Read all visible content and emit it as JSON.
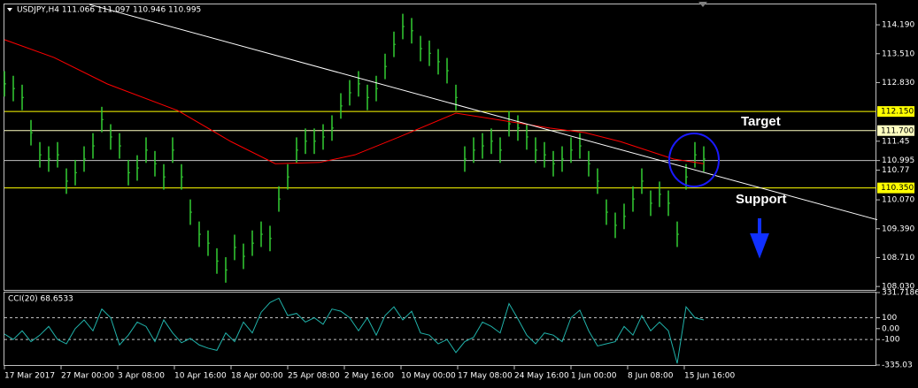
{
  "chart_data": [
    {
      "type": "ohlc",
      "title": "USDJPY,H4  111.066 111.097 110.946 110.995",
      "color": "#32cd32",
      "x": [
        0,
        5,
        10,
        15,
        20,
        25,
        30,
        35,
        40,
        45,
        50,
        55,
        60,
        65,
        70,
        75,
        80,
        85,
        90,
        95,
        100,
        105,
        110,
        115,
        120,
        125,
        130,
        135,
        140,
        145,
        150,
        155,
        160,
        165,
        170,
        175,
        180,
        185,
        190,
        195,
        200,
        205,
        210,
        215,
        220,
        225,
        230,
        235,
        240,
        245,
        250,
        255,
        260,
        265,
        270,
        275,
        280,
        285,
        290,
        295,
        300,
        305,
        310,
        315,
        320,
        325,
        330,
        335,
        340,
        345,
        350,
        355,
        360,
        365,
        370,
        375,
        380,
        385,
        390,
        395
      ],
      "high": [
        113.1,
        112.99,
        112.78,
        111.95,
        111.43,
        111.33,
        111.43,
        110.81,
        111.01,
        111.33,
        111.64,
        112.26,
        111.85,
        111.64,
        111.01,
        111.12,
        111.54,
        111.22,
        110.91,
        111.54,
        110.91,
        110.08,
        109.56,
        109.35,
        108.93,
        108.72,
        109.25,
        109.04,
        109.35,
        109.56,
        109.46,
        110.39,
        110.91,
        111.54,
        111.75,
        111.75,
        111.85,
        112.06,
        112.58,
        112.89,
        113.1,
        112.78,
        112.99,
        113.51,
        114.03,
        114.45,
        114.35,
        113.93,
        113.82,
        113.62,
        113.41,
        112.78,
        111.33,
        111.54,
        111.64,
        111.75,
        111.54,
        112.16,
        112.06,
        111.85,
        111.54,
        111.43,
        111.22,
        111.33,
        111.54,
        111.64,
        111.22,
        110.81,
        110.08,
        109.77,
        109.98,
        110.39,
        110.81,
        110.29,
        110.5,
        110.29,
        109.56,
        110.91,
        111.43,
        111.33
      ],
      "low": [
        112.5,
        112.39,
        112.18,
        111.35,
        110.83,
        110.73,
        110.83,
        110.21,
        110.41,
        110.73,
        111.04,
        111.66,
        111.25,
        111.04,
        110.41,
        110.52,
        110.94,
        110.62,
        110.31,
        110.94,
        110.31,
        109.48,
        108.96,
        108.75,
        108.33,
        108.12,
        108.65,
        108.44,
        108.75,
        108.96,
        108.86,
        109.79,
        110.31,
        110.94,
        111.15,
        111.15,
        111.25,
        111.46,
        111.98,
        112.29,
        112.5,
        112.18,
        112.39,
        112.91,
        113.43,
        113.85,
        113.75,
        113.33,
        113.22,
        113.02,
        112.81,
        112.18,
        110.73,
        110.94,
        111.04,
        111.15,
        110.94,
        111.56,
        111.46,
        111.25,
        110.94,
        110.83,
        110.62,
        110.73,
        110.94,
        111.04,
        110.62,
        110.21,
        109.48,
        109.17,
        109.38,
        109.79,
        110.21,
        109.69,
        109.9,
        109.69,
        108.96,
        110.31,
        110.83,
        110.73
      ],
      "lines": [
        {
          "color": "#ff0000",
          "x": [
            0,
            28,
            58,
            98,
            128,
            153,
            178,
            198,
            223,
            255,
            278,
            308,
            328,
            348,
            378,
            395
          ],
          "values": [
            113.84,
            113.42,
            112.8,
            112.17,
            111.44,
            110.92,
            110.95,
            111.13,
            111.55,
            112.11,
            111.96,
            111.76,
            111.65,
            111.44,
            111.03,
            110.92
          ]
        },
        {
          "color": "#ffffff",
          "x": [
            48,
            493
          ],
          "values": [
            114.67,
            109.6
          ]
        }
      ],
      "hlines": [
        {
          "value": 112.15,
          "label": "112.150",
          "color": "#ffff00"
        },
        {
          "value": 111.7,
          "label": "111.700",
          "color": "#ffffc0"
        },
        {
          "value": 110.995,
          "color": "#c0c0c0"
        },
        {
          "value": 110.35,
          "label": "110.350",
          "color": "#ffff00"
        }
      ],
      "annotations": [
        "Target",
        "Support"
      ],
      "xlim": [
        0,
        492.5
      ],
      "xticks": [
        {
          "value": 0,
          "label": "17 Mar 2017"
        },
        {
          "value": 32,
          "label": "27 Mar 00:00"
        },
        {
          "value": 64,
          "label": "3 Apr 08:00"
        },
        {
          "value": 96,
          "label": "10 Apr 16:00"
        },
        {
          "value": 128,
          "label": "18 Apr 00:00"
        },
        {
          "value": 160,
          "label": "25 Apr 08:00"
        },
        {
          "value": 192,
          "label": "2 May 16:00"
        },
        {
          "value": 224,
          "label": "10 May 00:00"
        },
        {
          "value": 256,
          "label": "17 May 08:00"
        },
        {
          "value": 288,
          "label": "24 May 16:00"
        },
        {
          "value": 320,
          "label": "1 Jun 00:00"
        },
        {
          "value": 352,
          "label": "8 Jun 08:00"
        },
        {
          "value": 384,
          "label": "15 Jun 16:00"
        }
      ],
      "ylim": [
        107.95,
        114.67
      ],
      "yticks": [
        {
          "value": 114.19,
          "label": "114.190"
        },
        {
          "value": 113.51,
          "label": "113.510"
        },
        {
          "value": 112.83,
          "label": "112.830"
        },
        111.45,
        110.995,
        110.77,
        {
          "value": 110.07,
          "label": "110.070"
        },
        {
          "value": 109.39,
          "label": "109.390"
        },
        {
          "value": 108.71,
          "label": "108.710"
        },
        {
          "value": 108.03,
          "label": "108.030"
        }
      ]
    },
    {
      "type": "line",
      "title": "CCI(20) 68.6533",
      "color": "#20b2aa",
      "x": [
        0,
        5,
        10,
        15,
        20,
        25,
        30,
        35,
        40,
        45,
        50,
        55,
        60,
        65,
        70,
        75,
        80,
        85,
        90,
        95,
        100,
        105,
        110,
        115,
        120,
        125,
        130,
        135,
        140,
        145,
        150,
        155,
        160,
        165,
        170,
        175,
        180,
        185,
        190,
        195,
        200,
        205,
        210,
        215,
        220,
        225,
        230,
        235,
        240,
        245,
        250,
        255,
        260,
        265,
        270,
        275,
        280,
        285,
        290,
        295,
        300,
        305,
        310,
        315,
        320,
        325,
        330,
        335,
        340,
        345,
        350,
        355,
        360,
        365,
        370,
        375,
        380,
        385,
        390,
        395
      ],
      "values": [
        -50,
        -100,
        -20,
        -120,
        -60,
        20,
        -100,
        -140,
        0,
        80,
        -20,
        180,
        100,
        -150,
        -60,
        60,
        20,
        -120,
        80,
        -40,
        -130,
        -90,
        -150,
        -180,
        -200,
        -40,
        -120,
        60,
        -40,
        150,
        240,
        280,
        120,
        140,
        60,
        100,
        40,
        180,
        160,
        100,
        -20,
        100,
        -60,
        120,
        200,
        80,
        160,
        -40,
        -60,
        -140,
        -100,
        -220,
        -120,
        -80,
        60,
        20,
        -40,
        230,
        90,
        -60,
        -140,
        -40,
        -60,
        -120,
        100,
        170,
        -20,
        -160,
        -140,
        -120,
        20,
        -60,
        120,
        -20,
        60,
        -20,
        -320,
        200,
        100,
        80
      ],
      "xlim": [
        0,
        492.5
      ],
      "ylim": [
        -335.03,
        331.7186
      ],
      "yticks": [
        331.7186,
        100,
        {
          "value": 0,
          "label": "0.00"
        },
        -100,
        -335.03
      ]
    }
  ]
}
